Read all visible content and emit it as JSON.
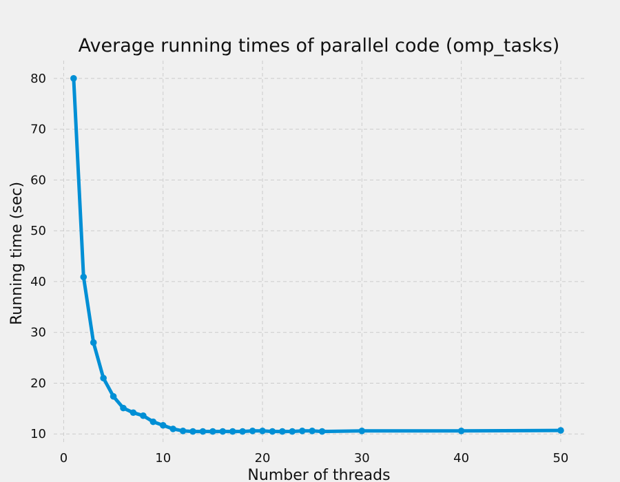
{
  "chart_data": {
    "type": "line",
    "title": "Average running times of parallel code (omp_tasks)",
    "xlabel": "Number of threads",
    "ylabel": "Running time (sec)",
    "xlim": [
      -1,
      52.5
    ],
    "ylim": [
      8,
      83.5
    ],
    "xticks": [
      0,
      10,
      20,
      30,
      40,
      50
    ],
    "yticks": [
      10,
      20,
      30,
      40,
      50,
      60,
      70,
      80
    ],
    "grid": true,
    "series": [
      {
        "color": "#008fd5",
        "x": [
          1,
          2,
          3,
          4,
          5,
          6,
          7,
          8,
          9,
          10,
          11,
          12,
          13,
          14,
          15,
          16,
          17,
          18,
          19,
          20,
          21,
          22,
          23,
          24,
          25,
          26,
          30,
          40,
          50
        ],
        "y": [
          80.0,
          40.9,
          28.0,
          21.0,
          17.4,
          15.1,
          14.2,
          13.6,
          12.4,
          11.7,
          11.0,
          10.6,
          10.5,
          10.5,
          10.5,
          10.5,
          10.5,
          10.5,
          10.6,
          10.6,
          10.5,
          10.5,
          10.5,
          10.6,
          10.6,
          10.5,
          10.6,
          10.6,
          10.7
        ]
      }
    ]
  }
}
